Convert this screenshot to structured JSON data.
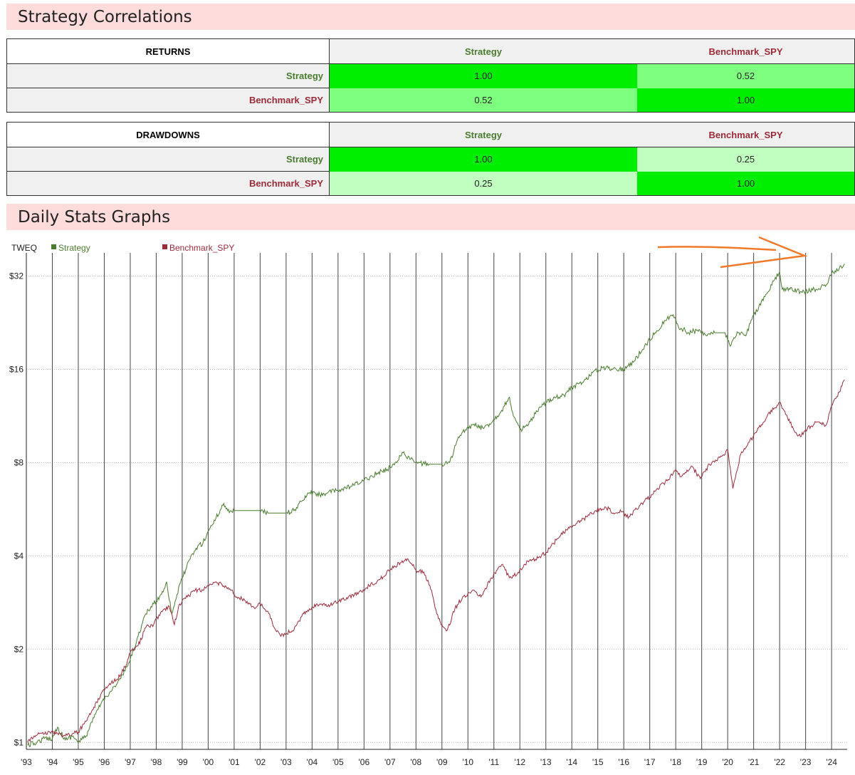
{
  "sections": {
    "correlations_title": "Strategy Correlations",
    "graphs_title": "Daily Stats Graphs"
  },
  "colors": {
    "strategy": "#4a7c2e",
    "benchmark": "#9c2b3a",
    "cell_high": "#00ee00",
    "cell_mid": "#7fff7f",
    "cell_low": "#c0ffc0",
    "annotation": "#f07a2a"
  },
  "returns_table": {
    "title": "RETURNS",
    "col_headers": [
      "Strategy",
      "Benchmark_SPY"
    ],
    "rows": [
      {
        "label": "Strategy",
        "values": [
          "1.00",
          "0.52"
        ]
      },
      {
        "label": "Benchmark_SPY",
        "values": [
          "0.52",
          "1.00"
        ]
      }
    ]
  },
  "drawdowns_table": {
    "title": "DRAWDOWNS",
    "col_headers": [
      "Strategy",
      "Benchmark_SPY"
    ],
    "rows": [
      {
        "label": "Strategy",
        "values": [
          "1.00",
          "0.25"
        ]
      },
      {
        "label": "Benchmark_SPY",
        "values": [
          "0.25",
          "1.00"
        ]
      }
    ]
  },
  "chart_data": {
    "type": "line",
    "title": "TWEQ",
    "y_scale": "log2",
    "ylim": [
      0.95,
      38
    ],
    "y_ticks": [
      {
        "value": 1,
        "label": "$1"
      },
      {
        "value": 2,
        "label": "$2"
      },
      {
        "value": 4,
        "label": "$4"
      },
      {
        "value": 8,
        "label": "$8"
      },
      {
        "value": 16,
        "label": "$16"
      },
      {
        "value": 32,
        "label": "$32"
      }
    ],
    "xlim": [
      1993.0,
      2024.6
    ],
    "x_ticks": [
      {
        "value": 1993,
        "label": "'93"
      },
      {
        "value": 1994,
        "label": "'94"
      },
      {
        "value": 1995,
        "label": "'95"
      },
      {
        "value": 1996,
        "label": "'96"
      },
      {
        "value": 1997,
        "label": "'97"
      },
      {
        "value": 1998,
        "label": "'98"
      },
      {
        "value": 1999,
        "label": "'99"
      },
      {
        "value": 2000,
        "label": "'00"
      },
      {
        "value": 2001,
        "label": "'01"
      },
      {
        "value": 2002,
        "label": "'02"
      },
      {
        "value": 2003,
        "label": "'03"
      },
      {
        "value": 2004,
        "label": "'04"
      },
      {
        "value": 2005,
        "label": "'05"
      },
      {
        "value": 2006,
        "label": "'06"
      },
      {
        "value": 2007,
        "label": "'07"
      },
      {
        "value": 2008,
        "label": "'08"
      },
      {
        "value": 2009,
        "label": "'09"
      },
      {
        "value": 2010,
        "label": "'10"
      },
      {
        "value": 2011,
        "label": "'11"
      },
      {
        "value": 2012,
        "label": "'12"
      },
      {
        "value": 2013,
        "label": "'13"
      },
      {
        "value": 2014,
        "label": "'14"
      },
      {
        "value": 2015,
        "label": "'15"
      },
      {
        "value": 2016,
        "label": "'16"
      },
      {
        "value": 2017,
        "label": "'17"
      },
      {
        "value": 2018,
        "label": "'18"
      },
      {
        "value": 2019,
        "label": "'19"
      },
      {
        "value": 2020,
        "label": "'20"
      },
      {
        "value": 2021,
        "label": "'21"
      },
      {
        "value": 2022,
        "label": "'22"
      },
      {
        "value": 2023,
        "label": "'23"
      },
      {
        "value": 2024,
        "label": "'24"
      }
    ],
    "grid": {
      "vertical": true,
      "horizontal_dotted": true
    },
    "legend_position": "top-left",
    "series": [
      {
        "name": "Strategy",
        "color": "#4a7c2e",
        "points": [
          [
            1993.05,
            0.98
          ],
          [
            1993.4,
            1.0
          ],
          [
            1993.7,
            1.03
          ],
          [
            1994.0,
            1.03
          ],
          [
            1994.2,
            1.12
          ],
          [
            1994.5,
            1.02
          ],
          [
            1994.8,
            1.05
          ],
          [
            1995.0,
            1.0
          ],
          [
            1995.3,
            1.05
          ],
          [
            1995.6,
            1.2
          ],
          [
            1995.9,
            1.35
          ],
          [
            1996.2,
            1.45
          ],
          [
            1996.5,
            1.55
          ],
          [
            1996.8,
            1.7
          ],
          [
            1997.0,
            1.85
          ],
          [
            1997.3,
            2.2
          ],
          [
            1997.6,
            2.6
          ],
          [
            1997.9,
            2.8
          ],
          [
            1998.2,
            3.0
          ],
          [
            1998.4,
            3.3
          ],
          [
            1998.6,
            2.6
          ],
          [
            1998.8,
            3.0
          ],
          [
            1999.0,
            3.4
          ],
          [
            1999.3,
            3.9
          ],
          [
            1999.6,
            4.3
          ],
          [
            1999.8,
            4.4
          ],
          [
            2000.0,
            4.8
          ],
          [
            2000.3,
            5.3
          ],
          [
            2000.6,
            5.9
          ],
          [
            2000.75,
            5.6
          ],
          [
            2001.0,
            5.6
          ],
          [
            2002.0,
            5.6
          ],
          [
            2002.3,
            5.5
          ],
          [
            2003.0,
            5.5
          ],
          [
            2003.3,
            5.6
          ],
          [
            2003.6,
            6.0
          ],
          [
            2003.9,
            6.4
          ],
          [
            2004.3,
            6.3
          ],
          [
            2004.6,
            6.4
          ],
          [
            2005.0,
            6.5
          ],
          [
            2005.5,
            6.7
          ],
          [
            2006.0,
            7.0
          ],
          [
            2006.5,
            7.4
          ],
          [
            2006.9,
            7.6
          ],
          [
            2007.2,
            8.0
          ],
          [
            2007.5,
            8.6
          ],
          [
            2007.8,
            8.2
          ],
          [
            2008.0,
            8.0
          ],
          [
            2008.5,
            7.9
          ],
          [
            2009.0,
            7.9
          ],
          [
            2009.3,
            8.0
          ],
          [
            2009.6,
            9.5
          ],
          [
            2009.9,
            10.2
          ],
          [
            2010.2,
            10.6
          ],
          [
            2010.6,
            10.3
          ],
          [
            2011.0,
            11.0
          ],
          [
            2011.3,
            11.8
          ],
          [
            2011.6,
            13.0
          ],
          [
            2011.75,
            11.3
          ],
          [
            2012.0,
            10.2
          ],
          [
            2012.3,
            10.5
          ],
          [
            2012.6,
            11.5
          ],
          [
            2013.0,
            12.5
          ],
          [
            2013.3,
            13.0
          ],
          [
            2013.7,
            13.2
          ],
          [
            2014.0,
            14.0
          ],
          [
            2014.4,
            14.5
          ],
          [
            2014.8,
            15.6
          ],
          [
            2015.2,
            16.2
          ],
          [
            2015.6,
            16.1
          ],
          [
            2016.0,
            16.0
          ],
          [
            2016.4,
            17.0
          ],
          [
            2016.8,
            19.0
          ],
          [
            2017.2,
            21.0
          ],
          [
            2017.6,
            23.0
          ],
          [
            2017.9,
            24.0
          ],
          [
            2018.1,
            22.0
          ],
          [
            2018.5,
            21.0
          ],
          [
            2018.9,
            21.5
          ],
          [
            2019.2,
            20.5
          ],
          [
            2019.5,
            21.0
          ],
          [
            2019.9,
            21.0
          ],
          [
            2020.1,
            19.0
          ],
          [
            2020.4,
            21.0
          ],
          [
            2020.7,
            20.5
          ],
          [
            2020.9,
            23.0
          ],
          [
            2021.2,
            25.5
          ],
          [
            2021.5,
            28.0
          ],
          [
            2021.8,
            31.0
          ],
          [
            2022.0,
            33.0
          ],
          [
            2022.1,
            29.0
          ],
          [
            2022.4,
            29.0
          ],
          [
            2022.8,
            28.5
          ],
          [
            2023.0,
            28.5
          ],
          [
            2023.4,
            29.0
          ],
          [
            2023.8,
            30.0
          ],
          [
            2024.0,
            32.5
          ],
          [
            2024.3,
            34.0
          ],
          [
            2024.5,
            35.0
          ]
        ]
      },
      {
        "name": "Benchmark_SPY",
        "color": "#9c2b3a",
        "points": [
          [
            1993.05,
            1.0
          ],
          [
            1993.3,
            1.05
          ],
          [
            1993.6,
            1.07
          ],
          [
            1993.9,
            1.08
          ],
          [
            1994.2,
            1.07
          ],
          [
            1994.5,
            1.05
          ],
          [
            1994.8,
            1.07
          ],
          [
            1995.0,
            1.08
          ],
          [
            1995.3,
            1.17
          ],
          [
            1995.6,
            1.3
          ],
          [
            1995.9,
            1.45
          ],
          [
            1996.2,
            1.55
          ],
          [
            1996.5,
            1.6
          ],
          [
            1996.8,
            1.75
          ],
          [
            1997.0,
            1.95
          ],
          [
            1997.3,
            2.05
          ],
          [
            1997.6,
            2.35
          ],
          [
            1997.9,
            2.4
          ],
          [
            1998.2,
            2.65
          ],
          [
            1998.5,
            2.75
          ],
          [
            1998.7,
            2.4
          ],
          [
            1998.9,
            2.8
          ],
          [
            1999.2,
            2.95
          ],
          [
            1999.5,
            3.1
          ],
          [
            1999.8,
            3.1
          ],
          [
            2000.0,
            3.2
          ],
          [
            2000.3,
            3.3
          ],
          [
            2000.6,
            3.2
          ],
          [
            2000.9,
            3.1
          ],
          [
            2001.1,
            2.95
          ],
          [
            2001.5,
            2.85
          ],
          [
            2001.8,
            2.7
          ],
          [
            2002.0,
            2.8
          ],
          [
            2002.3,
            2.65
          ],
          [
            2002.6,
            2.3
          ],
          [
            2002.8,
            2.2
          ],
          [
            2003.0,
            2.25
          ],
          [
            2003.3,
            2.3
          ],
          [
            2003.6,
            2.55
          ],
          [
            2003.9,
            2.7
          ],
          [
            2004.3,
            2.8
          ],
          [
            2004.6,
            2.75
          ],
          [
            2005.0,
            2.85
          ],
          [
            2005.4,
            2.95
          ],
          [
            2005.8,
            3.05
          ],
          [
            2006.2,
            3.2
          ],
          [
            2006.6,
            3.35
          ],
          [
            2007.0,
            3.6
          ],
          [
            2007.4,
            3.8
          ],
          [
            2007.7,
            3.9
          ],
          [
            2008.0,
            3.6
          ],
          [
            2008.3,
            3.55
          ],
          [
            2008.6,
            3.1
          ],
          [
            2008.8,
            2.6
          ],
          [
            2009.0,
            2.4
          ],
          [
            2009.2,
            2.3
          ],
          [
            2009.5,
            2.7
          ],
          [
            2009.8,
            2.95
          ],
          [
            2010.2,
            3.1
          ],
          [
            2010.5,
            2.95
          ],
          [
            2010.9,
            3.4
          ],
          [
            2011.3,
            3.75
          ],
          [
            2011.6,
            3.4
          ],
          [
            2011.9,
            3.5
          ],
          [
            2012.3,
            3.85
          ],
          [
            2012.6,
            3.9
          ],
          [
            2013.0,
            4.1
          ],
          [
            2013.4,
            4.5
          ],
          [
            2013.8,
            4.85
          ],
          [
            2014.2,
            5.1
          ],
          [
            2014.6,
            5.35
          ],
          [
            2014.9,
            5.6
          ],
          [
            2015.3,
            5.75
          ],
          [
            2015.6,
            5.5
          ],
          [
            2015.9,
            5.55
          ],
          [
            2016.2,
            5.35
          ],
          [
            2016.6,
            5.8
          ],
          [
            2016.9,
            6.1
          ],
          [
            2017.3,
            6.6
          ],
          [
            2017.7,
            7.05
          ],
          [
            2018.0,
            7.6
          ],
          [
            2018.2,
            7.2
          ],
          [
            2018.6,
            7.8
          ],
          [
            2018.95,
            7.1
          ],
          [
            2019.3,
            7.9
          ],
          [
            2019.7,
            8.3
          ],
          [
            2020.0,
            8.8
          ],
          [
            2020.2,
            6.6
          ],
          [
            2020.5,
            8.5
          ],
          [
            2020.8,
            9.3
          ],
          [
            2021.1,
            10.0
          ],
          [
            2021.5,
            11.2
          ],
          [
            2021.8,
            12.0
          ],
          [
            2022.0,
            12.5
          ],
          [
            2022.3,
            11.2
          ],
          [
            2022.6,
            10.0
          ],
          [
            2022.8,
            9.7
          ],
          [
            2023.0,
            10.2
          ],
          [
            2023.4,
            10.8
          ],
          [
            2023.8,
            10.6
          ],
          [
            2024.0,
            12.2
          ],
          [
            2024.3,
            13.5
          ],
          [
            2024.5,
            14.8
          ]
        ]
      }
    ]
  }
}
